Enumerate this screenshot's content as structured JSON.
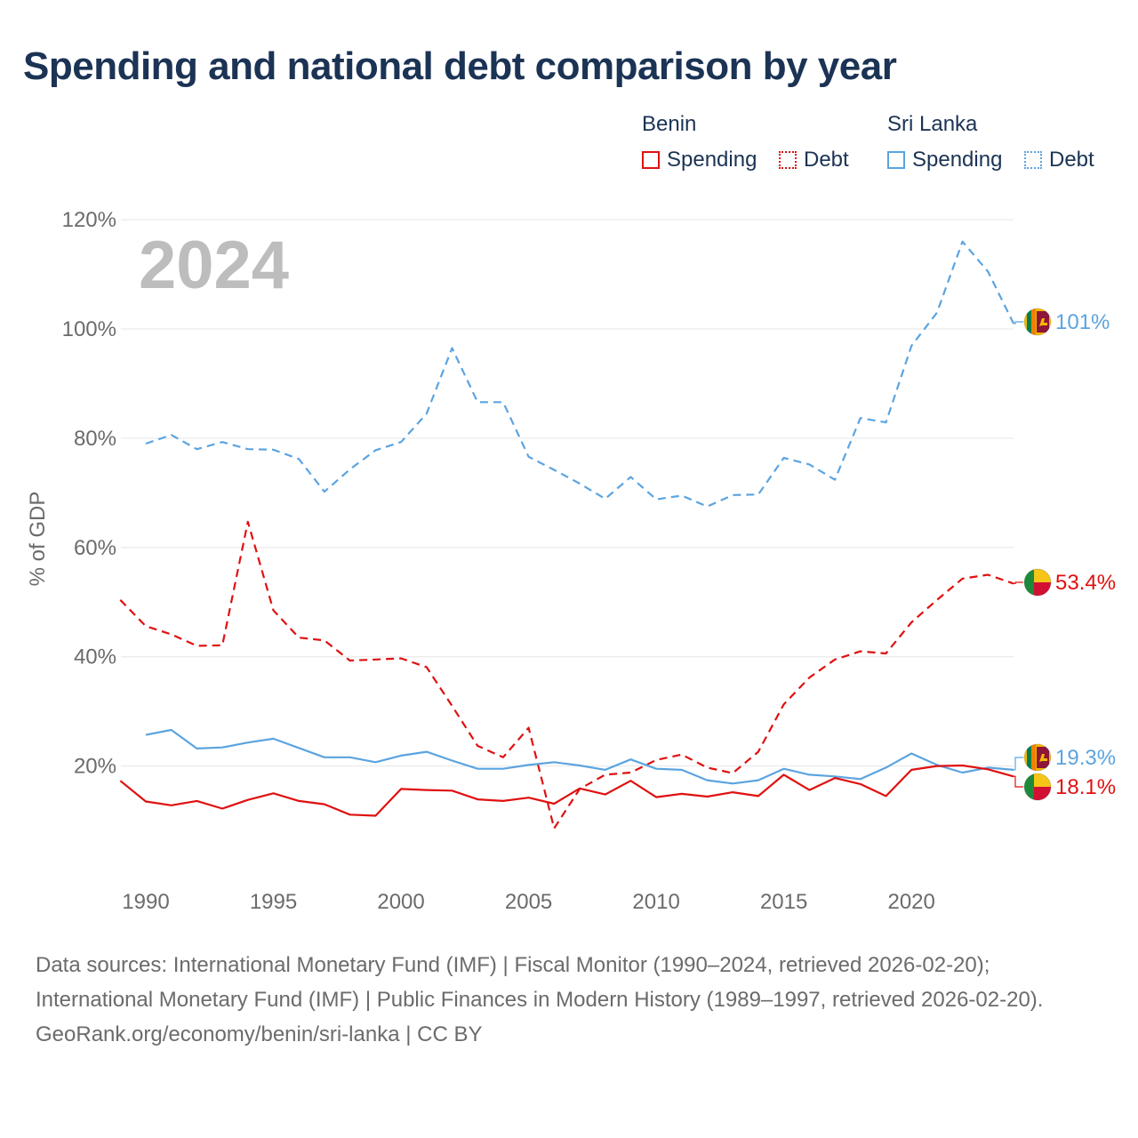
{
  "title": "Spending and national debt comparison by year",
  "legend": {
    "groups": [
      {
        "name": "Benin",
        "items": [
          {
            "label": "Spending"
          },
          {
            "label": "Debt"
          }
        ]
      },
      {
        "name": "Sri Lanka",
        "items": [
          {
            "label": "Spending"
          },
          {
            "label": "Debt"
          }
        ]
      }
    ]
  },
  "colors": {
    "benin": "#e01010",
    "sri_lanka": "#5ba4e0"
  },
  "chart_data": {
    "type": "line",
    "ylabel": "% of GDP",
    "xlabel": "",
    "year_label": "2024",
    "ylim": [
      -2,
      122
    ],
    "xlim": [
      1989,
      2024
    ],
    "y_ticks": [
      20,
      40,
      60,
      80,
      100,
      120
    ],
    "y_tick_labels": [
      "20%",
      "40%",
      "60%",
      "80%",
      "100%",
      "120%"
    ],
    "x_ticks": [
      1990,
      1995,
      2000,
      2005,
      2010,
      2015,
      2020
    ],
    "x_tick_labels": [
      "1990",
      "1995",
      "2000",
      "2005",
      "2010",
      "2015",
      "2020"
    ],
    "grid": true,
    "series": [
      {
        "name": "Sri Lanka Debt",
        "country": "Sri Lanka",
        "measure": "Debt",
        "style": "dashed",
        "end_label": "101%",
        "x": [
          1990,
          1991,
          1992,
          1993,
          1994,
          1995,
          1996,
          1997,
          1998,
          1999,
          2000,
          2001,
          2002,
          2003,
          2004,
          2005,
          2006,
          2007,
          2008,
          2009,
          2010,
          2011,
          2012,
          2013,
          2014,
          2015,
          2016,
          2017,
          2018,
          2019,
          2020,
          2021,
          2022,
          2023,
          2024
        ],
        "values": [
          79,
          80.6,
          78,
          79.3,
          78,
          77.9,
          76.2,
          70.2,
          74.3,
          77.8,
          79.3,
          84.5,
          96.5,
          86.6,
          86.6,
          76.6,
          74.2,
          71.7,
          68.9,
          72.9,
          68.8,
          69.5,
          67.5,
          69.6,
          69.7,
          76.4,
          75.2,
          72.4,
          83.7,
          82.9,
          96.9,
          103,
          116,
          110.5,
          101
        ]
      },
      {
        "name": "Benin Debt",
        "country": "Benin",
        "measure": "Debt",
        "style": "dashed",
        "end_label": "53.4%",
        "x": [
          1989,
          1990,
          1991,
          1992,
          1993,
          1994,
          1995,
          1996,
          1997,
          1998,
          1999,
          2000,
          2001,
          2002,
          2003,
          2004,
          2005,
          2006,
          2007,
          2008,
          2009,
          2010,
          2011,
          2012,
          2013,
          2014,
          2015,
          2016,
          2017,
          2018,
          2019,
          2020,
          2021,
          2022,
          2023,
          2024
        ],
        "values": [
          50.4,
          45.6,
          44.1,
          42,
          42.1,
          64.7,
          48.5,
          43.5,
          43,
          39.3,
          39.5,
          39.7,
          38.1,
          31,
          23.7,
          21.6,
          27,
          8.6,
          15.8,
          18.4,
          18.8,
          21.1,
          22.1,
          19.7,
          18.7,
          22.6,
          31.3,
          36.2,
          39.5,
          41,
          40.6,
          46.3,
          50.4,
          54.3,
          55,
          53.4
        ]
      },
      {
        "name": "Sri Lanka Spending",
        "country": "Sri Lanka",
        "measure": "Spending",
        "style": "solid",
        "end_label": "19.3%",
        "x": [
          1990,
          1991,
          1992,
          1993,
          1994,
          1995,
          1996,
          1997,
          1998,
          1999,
          2000,
          2001,
          2002,
          2003,
          2004,
          2005,
          2006,
          2007,
          2008,
          2009,
          2010,
          2011,
          2012,
          2013,
          2014,
          2015,
          2016,
          2017,
          2018,
          2019,
          2020,
          2021,
          2022,
          2023,
          2024
        ],
        "values": [
          25.7,
          26.6,
          23.2,
          23.4,
          24.3,
          25,
          23.3,
          21.6,
          21.6,
          20.7,
          21.9,
          22.6,
          21,
          19.5,
          19.5,
          20.2,
          20.7,
          20.1,
          19.3,
          21.2,
          19.5,
          19.3,
          17.4,
          16.8,
          17.4,
          19.5,
          18.4,
          18.1,
          17.6,
          19.7,
          22.3,
          20.2,
          18.8,
          19.7,
          19.3
        ]
      },
      {
        "name": "Benin Spending",
        "country": "Benin",
        "measure": "Spending",
        "style": "solid",
        "end_label": "18.1%",
        "x": [
          1989,
          1990,
          1991,
          1992,
          1993,
          1994,
          1995,
          1996,
          1997,
          1998,
          1999,
          2000,
          2001,
          2002,
          2003,
          2004,
          2005,
          2006,
          2007,
          2008,
          2009,
          2010,
          2011,
          2012,
          2013,
          2014,
          2015,
          2016,
          2017,
          2018,
          2019,
          2020,
          2021,
          2022,
          2023,
          2024
        ],
        "values": [
          17.3,
          13.5,
          12.8,
          13.6,
          12.2,
          13.8,
          15,
          13.6,
          13,
          11.1,
          10.9,
          15.8,
          15.6,
          15.5,
          13.9,
          13.6,
          14.2,
          13.1,
          15.9,
          14.8,
          17.3,
          14.3,
          14.9,
          14.4,
          15.2,
          14.5,
          18.4,
          15.6,
          17.8,
          16.7,
          14.5,
          19.3,
          20,
          20.1,
          19.4,
          18.1
        ]
      }
    ]
  },
  "footer": {
    "sources": "Data sources: International Monetary Fund (IMF) | Fiscal Monitor (1990–2024, retrieved 2026-02-20); International Monetary Fund (IMF) | Public Finances in Modern History (1989–1997, retrieved 2026-02-20).",
    "credit": "GeoRank.org/economy/benin/sri-lanka | CC BY"
  }
}
